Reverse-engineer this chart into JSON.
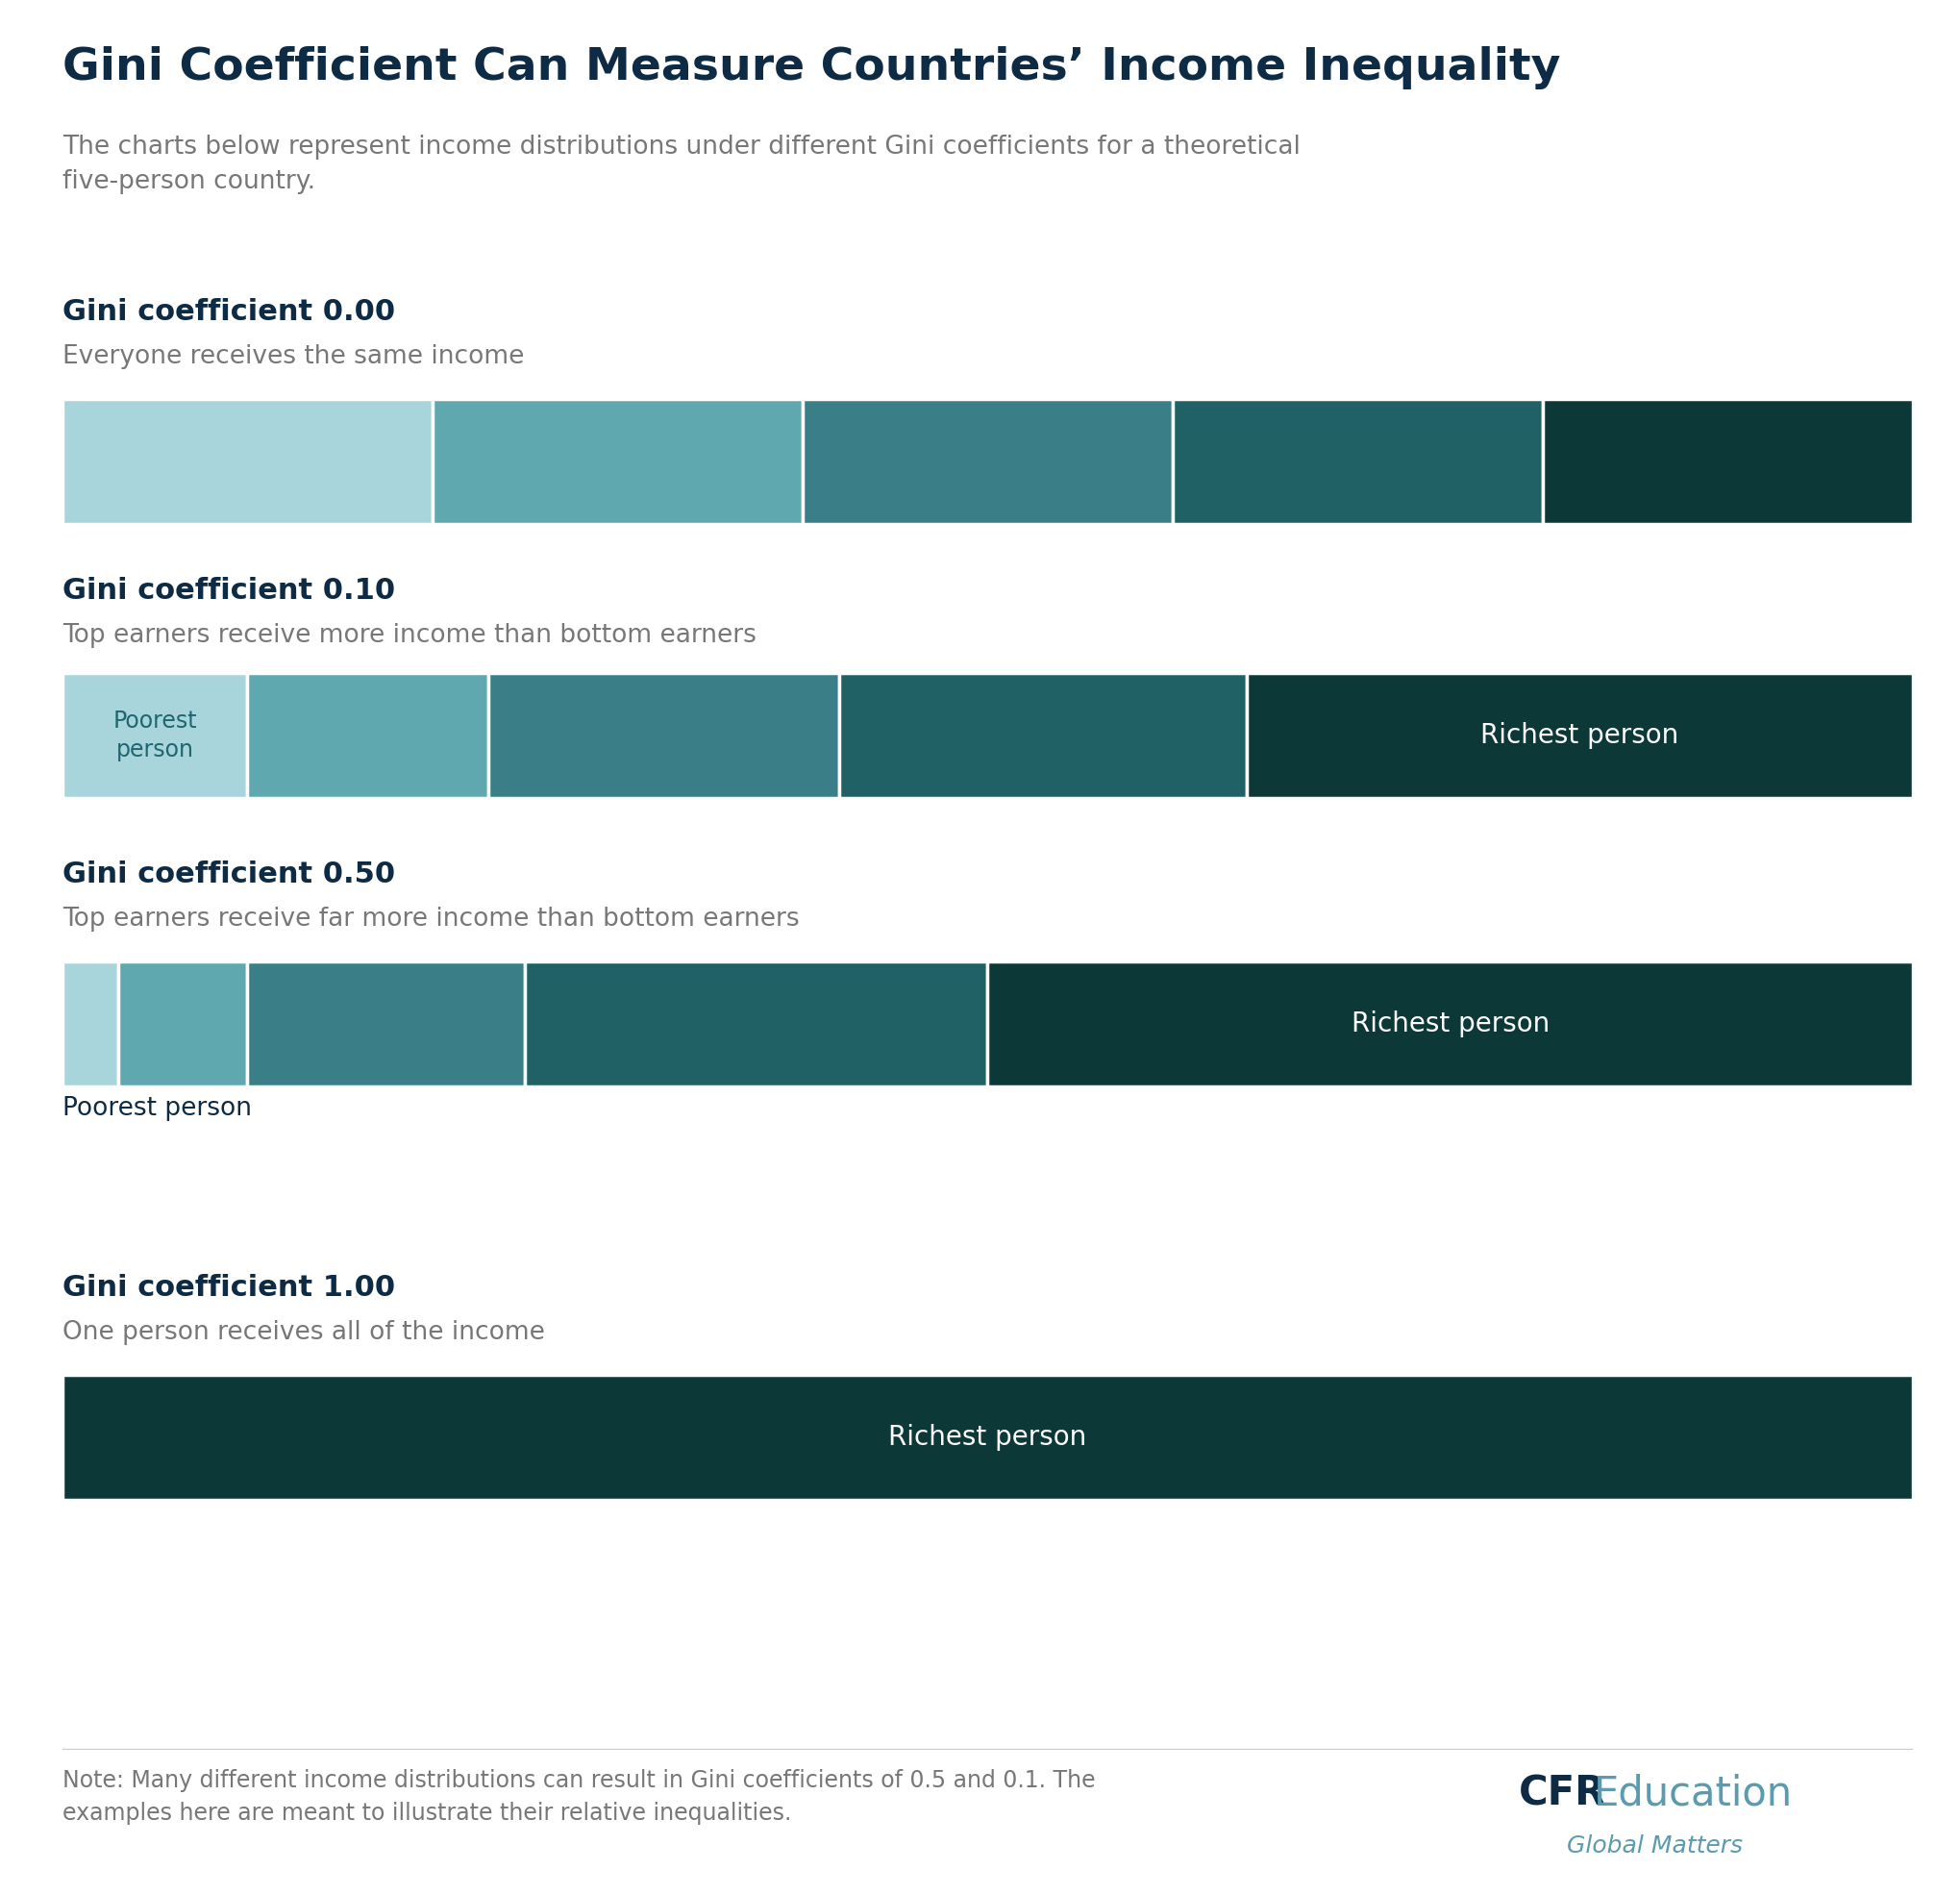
{
  "title": "Gini Coefficient Can Measure Countries’ Income Inequality",
  "subtitle": "The charts below represent income distributions under different Gini coefficients for a theoretical\nfive-person country.",
  "title_color": "#0d2b45",
  "subtitle_color": "#777777",
  "background_color": "#ffffff",
  "section_label_color": "#0d2b45",
  "section_desc_color": "#777777",
  "bar_text_color": "#ffffff",
  "poorest_label_color": "#1f6670",
  "note_color": "#777777",
  "cfr_color": "#0d2b45",
  "cfr_edu_color": "#5b9baf",
  "sections": [
    {
      "gini": "0.00",
      "label": "Gini coefficient 0.00",
      "description": "Everyone receives the same income",
      "widths": [
        20,
        20,
        20,
        20,
        20
      ],
      "bar_labels": [
        "",
        "",
        "",
        "",
        ""
      ],
      "poorest_inside": false,
      "poorest_below": false,
      "richest_idx": -1
    },
    {
      "gini": "0.10",
      "label": "Gini coefficient 0.10",
      "description": "Top earners receive more income than bottom earners",
      "widths": [
        10,
        13,
        19,
        22,
        36
      ],
      "bar_labels": [
        "",
        "",
        "",
        "",
        "Richest person"
      ],
      "poorest_inside": true,
      "poorest_below": false,
      "richest_idx": 4
    },
    {
      "gini": "0.50",
      "label": "Gini coefficient 0.50",
      "description": "Top earners receive far more income than bottom earners",
      "widths": [
        3,
        7,
        15,
        25,
        50
      ],
      "bar_labels": [
        "",
        "",
        "",
        "",
        "Richest person"
      ],
      "poorest_inside": false,
      "poorest_below": true,
      "richest_idx": 4
    },
    {
      "gini": "1.00",
      "label": "Gini coefficient 1.00",
      "description": "One person receives all of the income",
      "widths": [
        0,
        0,
        0,
        0,
        100
      ],
      "bar_labels": [
        "",
        "",
        "",
        "",
        "Richest person"
      ],
      "poorest_inside": false,
      "poorest_below": false,
      "richest_idx": 4
    }
  ],
  "colors": [
    "#a8d5db",
    "#5fa8b0",
    "#3a7f88",
    "#1f6165",
    "#0c3838"
  ],
  "note_text": "Note: Many different income distributions can result in Gini coefficients of 0.5 and 0.1. The\nexamples here are meant to illustrate their relative inequalities.",
  "cfr_text_bold": "CFR",
  "cfr_text_regular": "Education",
  "cfr_subtext": "Global Matters"
}
